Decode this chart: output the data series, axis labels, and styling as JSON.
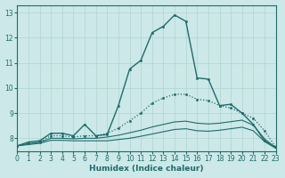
{
  "bg_color": "#cce8e8",
  "line_color": "#1f6b6b",
  "grid_color": "#b0d4d0",
  "xlabel": "Humidex (Indice chaleur)",
  "ylim": [
    7.5,
    13.3
  ],
  "xlim": [
    0,
    23
  ],
  "xticks": [
    0,
    1,
    2,
    3,
    4,
    5,
    6,
    7,
    8,
    9,
    10,
    11,
    12,
    13,
    14,
    15,
    16,
    17,
    18,
    19,
    20,
    21,
    22,
    23
  ],
  "yticks": [
    8,
    9,
    10,
    11,
    12,
    13
  ],
  "series": [
    {
      "x": [
        0,
        1,
        2,
        3,
        4,
        5,
        6,
        7,
        8,
        9,
        10,
        11,
        12,
        13,
        14,
        15,
        16,
        17,
        18,
        19,
        20,
        21,
        22,
        23
      ],
      "y": [
        7.7,
        7.85,
        7.9,
        8.2,
        8.2,
        8.1,
        8.55,
        8.1,
        8.15,
        9.3,
        10.75,
        11.1,
        12.2,
        12.45,
        12.9,
        12.65,
        10.4,
        10.35,
        9.3,
        9.35,
        9.0,
        8.55,
        7.9,
        7.65
      ],
      "marker": ".",
      "markersize": 3.5,
      "linewidth": 1.0,
      "linestyle": "-"
    },
    {
      "x": [
        0,
        1,
        2,
        3,
        4,
        5,
        6,
        7,
        8,
        9,
        10,
        11,
        12,
        13,
        14,
        15,
        16,
        17,
        18,
        19,
        20,
        21,
        22,
        23
      ],
      "y": [
        7.7,
        7.8,
        7.85,
        8.1,
        8.1,
        8.05,
        8.1,
        8.1,
        8.2,
        8.4,
        8.7,
        9.0,
        9.4,
        9.6,
        9.75,
        9.75,
        9.55,
        9.5,
        9.3,
        9.2,
        9.0,
        8.8,
        8.3,
        7.65
      ],
      "marker": ".",
      "markersize": 3.5,
      "linewidth": 0.9,
      "linestyle": ":"
    },
    {
      "x": [
        0,
        1,
        2,
        3,
        4,
        5,
        6,
        7,
        8,
        9,
        10,
        11,
        12,
        13,
        14,
        15,
        16,
        17,
        18,
        19,
        20,
        21,
        22,
        23
      ],
      "y": [
        7.7,
        7.78,
        7.84,
        8.0,
        8.0,
        7.98,
        8.0,
        8.0,
        8.05,
        8.12,
        8.22,
        8.32,
        8.45,
        8.55,
        8.65,
        8.68,
        8.6,
        8.57,
        8.6,
        8.66,
        8.72,
        8.52,
        7.98,
        7.62
      ],
      "marker": null,
      "markersize": 0,
      "linewidth": 0.8,
      "linestyle": "-"
    },
    {
      "x": [
        0,
        1,
        2,
        3,
        4,
        5,
        6,
        7,
        8,
        9,
        10,
        11,
        12,
        13,
        14,
        15,
        16,
        17,
        18,
        19,
        20,
        21,
        22,
        23
      ],
      "y": [
        7.7,
        7.75,
        7.8,
        7.92,
        7.92,
        7.9,
        7.9,
        7.9,
        7.9,
        7.95,
        8.0,
        8.08,
        8.17,
        8.26,
        8.35,
        8.38,
        8.3,
        8.28,
        8.32,
        8.38,
        8.44,
        8.3,
        7.87,
        7.6
      ],
      "marker": null,
      "markersize": 0,
      "linewidth": 0.8,
      "linestyle": "-"
    }
  ]
}
